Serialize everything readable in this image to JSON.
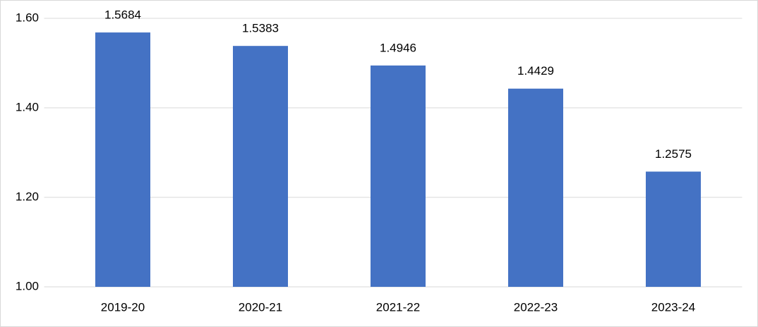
{
  "chart_data": {
    "type": "bar",
    "categories": [
      "2019-20",
      "2020-21",
      "2021-22",
      "2022-23",
      "2023-24"
    ],
    "values": [
      1.5684,
      1.5383,
      1.4946,
      1.4429,
      1.2575
    ],
    "color": "#4472c4",
    "ylim": [
      1.0,
      1.6
    ],
    "yticks": [
      {
        "value": 1.0,
        "label": "1.00"
      },
      {
        "value": 1.2,
        "label": "1.20"
      },
      {
        "value": 1.4,
        "label": "1.40"
      },
      {
        "value": 1.6,
        "label": "1.60"
      }
    ],
    "grid": true
  }
}
